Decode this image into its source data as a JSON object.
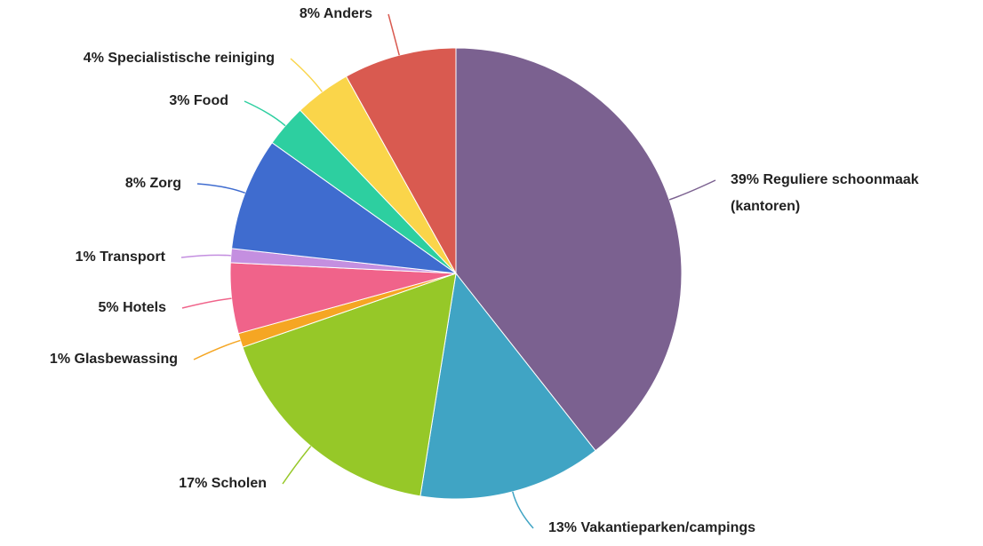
{
  "chart_data": {
    "type": "pie",
    "categories": [
      "Reguliere schoonmaak (kantoren)",
      "Vakantieparken/campings",
      "Scholen",
      "Glasbewassing",
      "Hotels",
      "Transport",
      "Zorg",
      "Food",
      "Specialistische reiniging",
      "Anders"
    ],
    "values": [
      39,
      13,
      17,
      1,
      5,
      1,
      8,
      3,
      4,
      8
    ],
    "value_labels": [
      "39%",
      "13%",
      "17%",
      "1%",
      "5%",
      "1%",
      "8%",
      "3%",
      "4%",
      "8%"
    ],
    "colors": [
      "#7b6190",
      "#40a4c4",
      "#96c828",
      "#f5a623",
      "#f0638a",
      "#c48fe0",
      "#3f6ccf",
      "#2dcfa0",
      "#fad54a",
      "#d95a50"
    ]
  }
}
